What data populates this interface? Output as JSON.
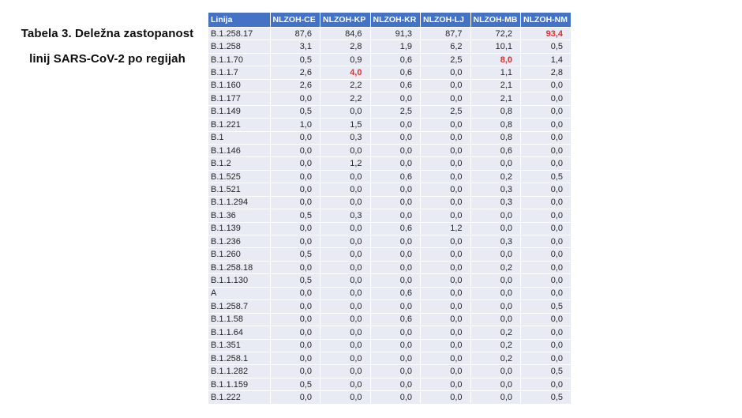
{
  "title": {
    "line1": "Tabela 3. Deležna zastopanost",
    "line2": "linij SARS-CoV-2 po regijah"
  },
  "table": {
    "columns": [
      "Linija",
      "NLZOH-CE",
      "NLZOH-KP",
      "NLZOH-KR",
      "NLZOH-LJ",
      "NLZOH-MB",
      "NLZOH-NM"
    ],
    "rows": [
      {
        "lineage": "B.1.258.17",
        "values": [
          "87,6",
          "84,6",
          "91,3",
          "87,7",
          "72,2",
          "93,4"
        ],
        "red": [
          5
        ]
      },
      {
        "lineage": "B.1.258",
        "values": [
          "3,1",
          "2,8",
          "1,9",
          "6,2",
          "10,1",
          "0,5"
        ],
        "red": []
      },
      {
        "lineage": "B.1.1.70",
        "values": [
          "0,5",
          "0,9",
          "0,6",
          "2,5",
          "8,0",
          "1,4"
        ],
        "red": [
          4
        ]
      },
      {
        "lineage": "B.1.1.7",
        "values": [
          "2,6",
          "4,0",
          "0,6",
          "0,0",
          "1,1",
          "2,8"
        ],
        "red": [
          1
        ]
      },
      {
        "lineage": "B.1.160",
        "values": [
          "2,6",
          "2,2",
          "0,6",
          "0,0",
          "2,1",
          "0,0"
        ],
        "red": []
      },
      {
        "lineage": "B.1.177",
        "values": [
          "0,0",
          "2,2",
          "0,0",
          "0,0",
          "2,1",
          "0,0"
        ],
        "red": []
      },
      {
        "lineage": "B.1.149",
        "values": [
          "0,5",
          "0,0",
          "2,5",
          "2,5",
          "0,8",
          "0,0"
        ],
        "red": []
      },
      {
        "lineage": "B.1.221",
        "values": [
          "1,0",
          "1,5",
          "0,0",
          "0,0",
          "0,8",
          "0,0"
        ],
        "red": []
      },
      {
        "lineage": "B.1",
        "values": [
          "0,0",
          "0,3",
          "0,0",
          "0,0",
          "0,8",
          "0,0"
        ],
        "red": []
      },
      {
        "lineage": "B.1.146",
        "values": [
          "0,0",
          "0,0",
          "0,0",
          "0,0",
          "0,6",
          "0,0"
        ],
        "red": []
      },
      {
        "lineage": "B.1.2",
        "values": [
          "0,0",
          "1,2",
          "0,0",
          "0,0",
          "0,0",
          "0,0"
        ],
        "red": []
      },
      {
        "lineage": "B.1.525",
        "values": [
          "0,0",
          "0,0",
          "0,6",
          "0,0",
          "0,2",
          "0,5"
        ],
        "red": []
      },
      {
        "lineage": "B.1.521",
        "values": [
          "0,0",
          "0,0",
          "0,0",
          "0,0",
          "0,3",
          "0,0"
        ],
        "red": []
      },
      {
        "lineage": "B.1.1.294",
        "values": [
          "0,0",
          "0,0",
          "0,0",
          "0,0",
          "0,3",
          "0,0"
        ],
        "red": []
      },
      {
        "lineage": "B.1.36",
        "values": [
          "0,5",
          "0,3",
          "0,0",
          "0,0",
          "0,0",
          "0,0"
        ],
        "red": []
      },
      {
        "lineage": "B.1.139",
        "values": [
          "0,0",
          "0,0",
          "0,6",
          "1,2",
          "0,0",
          "0,0"
        ],
        "red": []
      },
      {
        "lineage": "B.1.236",
        "values": [
          "0,0",
          "0,0",
          "0,0",
          "0,0",
          "0,3",
          "0,0"
        ],
        "red": []
      },
      {
        "lineage": "B.1.260",
        "values": [
          "0,5",
          "0,0",
          "0,0",
          "0,0",
          "0,0",
          "0,0"
        ],
        "red": []
      },
      {
        "lineage": "B.1.258.18",
        "values": [
          "0,0",
          "0,0",
          "0,0",
          "0,0",
          "0,2",
          "0,0"
        ],
        "red": []
      },
      {
        "lineage": "B.1.1.130",
        "values": [
          "0,5",
          "0,0",
          "0,0",
          "0,0",
          "0,0",
          "0,0"
        ],
        "red": []
      },
      {
        "lineage": "A",
        "values": [
          "0,0",
          "0,0",
          "0,6",
          "0,0",
          "0,0",
          "0,0"
        ],
        "red": []
      },
      {
        "lineage": "B.1.258.7",
        "values": [
          "0,0",
          "0,0",
          "0,0",
          "0,0",
          "0,0",
          "0,5"
        ],
        "red": []
      },
      {
        "lineage": "B.1.1.58",
        "values": [
          "0,0",
          "0,0",
          "0,6",
          "0,0",
          "0,0",
          "0,0"
        ],
        "red": []
      },
      {
        "lineage": "B.1.1.64",
        "values": [
          "0,0",
          "0,0",
          "0,0",
          "0,0",
          "0,2",
          "0,0"
        ],
        "red": []
      },
      {
        "lineage": "B.1.351",
        "values": [
          "0,0",
          "0,0",
          "0,0",
          "0,0",
          "0,2",
          "0,0"
        ],
        "red": []
      },
      {
        "lineage": "B.1.258.1",
        "values": [
          "0,0",
          "0,0",
          "0,0",
          "0,0",
          "0,2",
          "0,0"
        ],
        "red": []
      },
      {
        "lineage": "B.1.1.282",
        "values": [
          "0,0",
          "0,0",
          "0,0",
          "0,0",
          "0,0",
          "0,5"
        ],
        "red": []
      },
      {
        "lineage": "B.1.1.159",
        "values": [
          "0,5",
          "0,0",
          "0,0",
          "0,0",
          "0,0",
          "0,0"
        ],
        "red": []
      },
      {
        "lineage": "B.1.222",
        "values": [
          "0,0",
          "0,0",
          "0,0",
          "0,0",
          "0,0",
          "0,5"
        ],
        "red": []
      }
    ]
  },
  "colors": {
    "header_bg": "#4472C4",
    "header_text": "#FFFFFF",
    "row_bg": "#E9EBF4",
    "highlight_red": "#D93030"
  }
}
